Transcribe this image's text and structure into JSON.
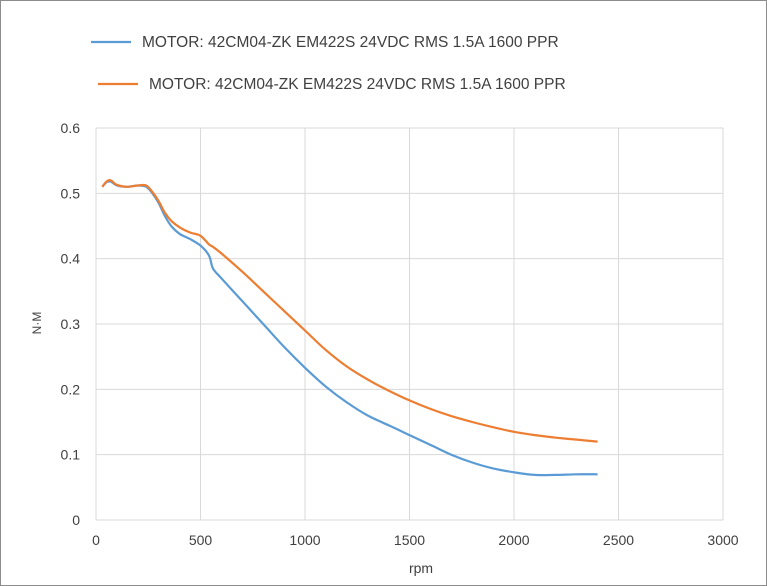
{
  "chart_data": {
    "type": "line",
    "xlabel": "rpm",
    "ylabel": "N·M",
    "xlim": [
      0,
      3000
    ],
    "ylim": [
      0,
      0.6
    ],
    "xticks": [
      "0",
      "500",
      "1000",
      "1500",
      "2000",
      "2500",
      "3000"
    ],
    "yticks": [
      "0",
      "0.1",
      "0.2",
      "0.3",
      "0.4",
      "0.5",
      "0.6"
    ],
    "grid": true,
    "legend_position": "top",
    "series": [
      {
        "name": "MOTOR: 42CM04-ZK EM422S 24VDC RMS 1.5A 1600 PPR",
        "color": "#5b9bd5",
        "x": [
          30,
          50,
          70,
          100,
          150,
          200,
          240,
          270,
          300,
          330,
          360,
          400,
          450,
          500,
          540,
          560,
          600,
          700,
          800,
          900,
          1000,
          1100,
          1200,
          1300,
          1400,
          1500,
          1600,
          1700,
          1800,
          1900,
          2000,
          2100,
          2200,
          2300,
          2400
        ],
        "y": [
          0.51,
          0.517,
          0.518,
          0.512,
          0.51,
          0.512,
          0.51,
          0.5,
          0.485,
          0.465,
          0.45,
          0.438,
          0.43,
          0.42,
          0.405,
          0.385,
          0.37,
          0.335,
          0.3,
          0.265,
          0.233,
          0.204,
          0.18,
          0.16,
          0.145,
          0.13,
          0.115,
          0.1,
          0.088,
          0.079,
          0.073,
          0.069,
          0.069,
          0.07,
          0.07
        ]
      },
      {
        "name": "MOTOR: 42CM04-ZK EM422S 24VDC RMS 1.5A 1600 PPR",
        "color": "#ed7d31",
        "x": [
          30,
          50,
          70,
          100,
          150,
          200,
          240,
          270,
          300,
          330,
          360,
          400,
          450,
          500,
          540,
          560,
          600,
          700,
          800,
          900,
          1000,
          1100,
          1200,
          1300,
          1400,
          1500,
          1600,
          1700,
          1800,
          1900,
          2000,
          2100,
          2200,
          2300,
          2400
        ],
        "y": [
          0.51,
          0.518,
          0.52,
          0.513,
          0.51,
          0.512,
          0.512,
          0.502,
          0.488,
          0.47,
          0.458,
          0.448,
          0.44,
          0.435,
          0.422,
          0.418,
          0.408,
          0.38,
          0.35,
          0.32,
          0.29,
          0.26,
          0.235,
          0.215,
          0.198,
          0.183,
          0.17,
          0.159,
          0.15,
          0.142,
          0.135,
          0.13,
          0.126,
          0.123,
          0.12
        ]
      }
    ]
  }
}
